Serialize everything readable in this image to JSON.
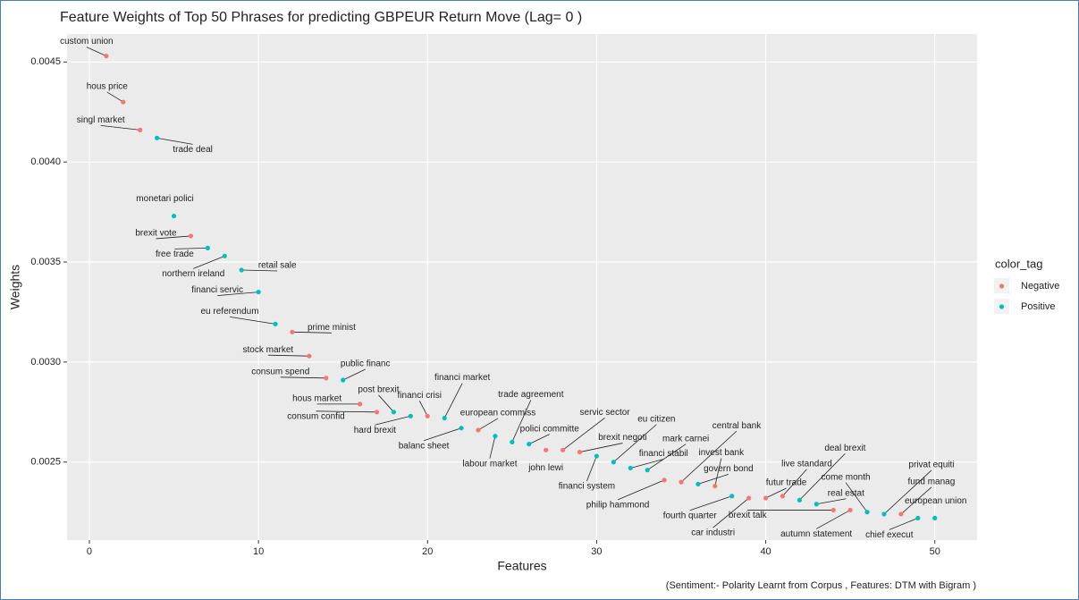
{
  "chart_data": {
    "type": "scatter",
    "title": "Feature Weights of Top 50 Phrases for predicting GBPEUR Return Move (Lag= 0 )",
    "x_label": "Features",
    "y_label": "Weights",
    "caption": "(Sentiment:- Polarity Learnt from Corpus , Features: DTM with Bigram )",
    "legend_title": "color_tag",
    "xlim": [
      -1.32,
      52.5
    ],
    "xticks": [
      0,
      10,
      20,
      30,
      40,
      50
    ],
    "ylim": [
      0.00211,
      0.00464
    ],
    "yticks": [
      0.0025,
      {
        "value": 0.003,
        "label": "0.0030"
      },
      0.0035,
      {
        "value": 0.004,
        "label": "0.0040"
      },
      0.0045
    ],
    "grid": true,
    "series": [
      {
        "name": "Negative",
        "color": "#f8766d",
        "x": [
          1,
          2,
          3,
          6,
          12,
          13,
          14,
          16,
          17,
          20,
          23,
          27,
          28,
          29,
          34,
          35,
          37,
          39,
          40,
          41,
          44,
          45,
          48
        ],
        "values": [
          0.00453,
          0.0043,
          0.00416,
          0.00363,
          0.00315,
          0.00303,
          0.00292,
          0.00279,
          0.00275,
          0.00273,
          0.00266,
          0.00256,
          0.00256,
          0.00255,
          0.00241,
          0.0024,
          0.00238,
          0.00232,
          0.00232,
          0.00233,
          0.00226,
          0.00226,
          0.00224
        ],
        "labels": [
          "custom union",
          "hous price",
          "singl market",
          "brexit vote",
          "prime minist",
          "stock market",
          "consum spend",
          "hous market",
          "consum confid",
          "financi crisi",
          "european commiss",
          "john lewi",
          "servic sector",
          "brexit negoti",
          "philip hammond",
          "central bank",
          "invest bank",
          "car industri",
          "futur trade",
          "live standard",
          "brexit talk",
          "autumn statement",
          "fund manag"
        ]
      },
      {
        "name": "Positive",
        "color": "#00bfc4",
        "x": [
          4,
          5,
          7,
          8,
          9,
          10,
          11,
          15,
          18,
          19,
          21,
          22,
          24,
          25,
          26,
          30,
          31,
          32,
          33,
          36,
          38,
          42,
          43,
          46,
          47,
          49,
          50
        ],
        "values": [
          0.00412,
          0.00373,
          0.00357,
          0.00353,
          0.00346,
          0.00335,
          0.00319,
          0.00291,
          0.00275,
          0.00273,
          0.00272,
          0.00267,
          0.00263,
          0.0026,
          0.00259,
          0.00253,
          0.0025,
          0.00247,
          0.00246,
          0.00239,
          0.00233,
          0.00231,
          0.00229,
          0.00225,
          0.00224,
          0.00222,
          0.00222
        ],
        "labels": [
          "trade deal",
          "monetari polici",
          "free trade",
          "northern ireland",
          "retail sale",
          "financi servic",
          "eu referendum",
          "public financ",
          "post brexit",
          "hard brexit",
          "financi market",
          "balanc sheet",
          "labour market",
          "trade agreement",
          "polici committe",
          "financi system",
          "eu citizen",
          "financi stabil",
          "mark carnei",
          "govern bond",
          "fourth quarter",
          "deal brexit",
          "real estat",
          "come month",
          "privat equiti",
          "chief execut",
          "european union"
        ]
      }
    ]
  }
}
